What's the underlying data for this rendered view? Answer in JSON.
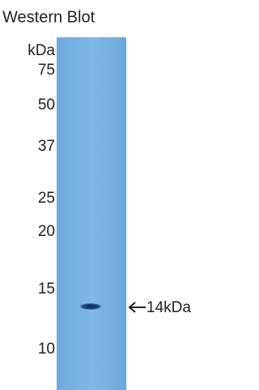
{
  "title": "Western Blot",
  "unit_label": "kDa",
  "markers": [
    "75",
    "50",
    "37",
    "25",
    "20",
    "15",
    "10"
  ],
  "band_label": "14kDa"
}
